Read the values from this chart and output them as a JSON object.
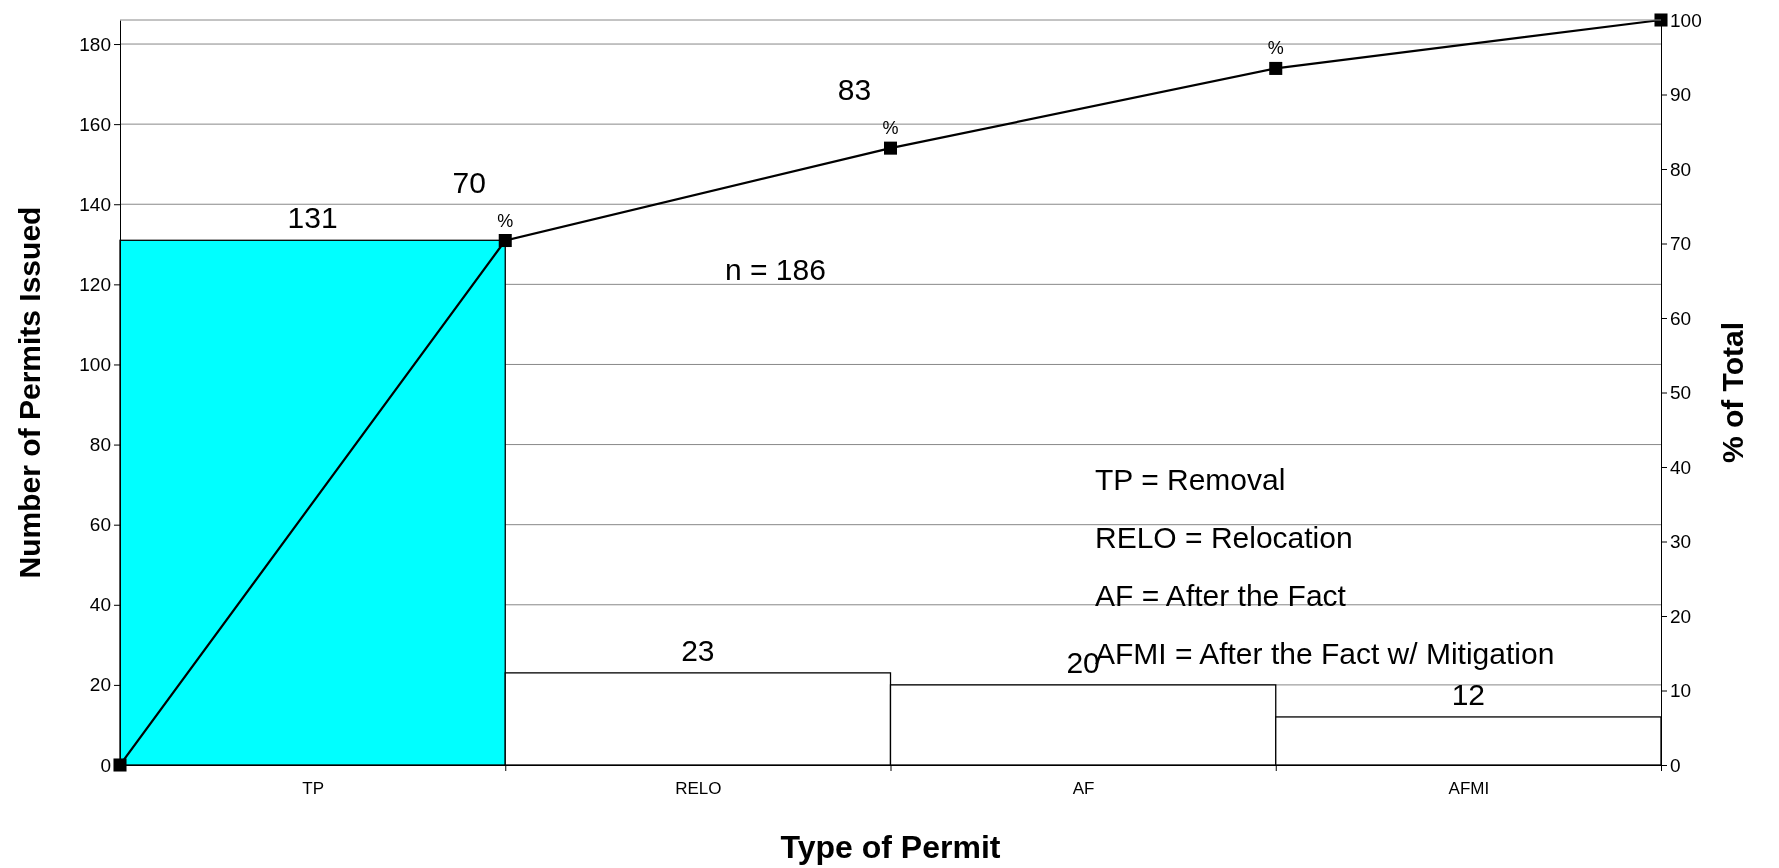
{
  "chart_data": {
    "type": "bar",
    "xlabel": "Type of Permit",
    "ylabel": "Number of Permits Issued",
    "y2label": "% of Total",
    "categories": [
      null,
      "TP",
      null,
      "RELO",
      null,
      "AF",
      null,
      "AFMI",
      null
    ],
    "series": [
      {
        "colors": [
          null,
          "#00ffff",
          null,
          "#ffffff",
          null,
          "#ffffff",
          null,
          "#ffffff",
          null
        ],
        "values": [
          null,
          131,
          null,
          23,
          null,
          20,
          null,
          12,
          null
        ],
        "data_labels": true
      },
      {
        "type": "line",
        "axis": "y2",
        "color": "#000000",
        "marker": "square",
        "values": [
          0,
          null,
          70.4,
          null,
          82.8,
          null,
          93.5,
          null,
          100
        ],
        "value_labels": [
          null,
          null,
          "70 %",
          null,
          "83 %",
          null,
          "%",
          null,
          null
        ]
      }
    ],
    "ylim": [
      0,
      186
    ],
    "yticks": [
      0,
      20,
      40,
      60,
      80,
      100,
      120,
      140,
      160,
      180
    ],
    "y2lim": [
      0,
      100
    ],
    "y2ticks": [
      0,
      10,
      20,
      30,
      40,
      50,
      60,
      70,
      80,
      90,
      100
    ],
    "grid": "y",
    "annotations": [
      "n = 186",
      "TP = Removal",
      "RELO = Relocation",
      "AF = After the Fact",
      "AFMI = After the Fact w/ Mitigation"
    ]
  }
}
